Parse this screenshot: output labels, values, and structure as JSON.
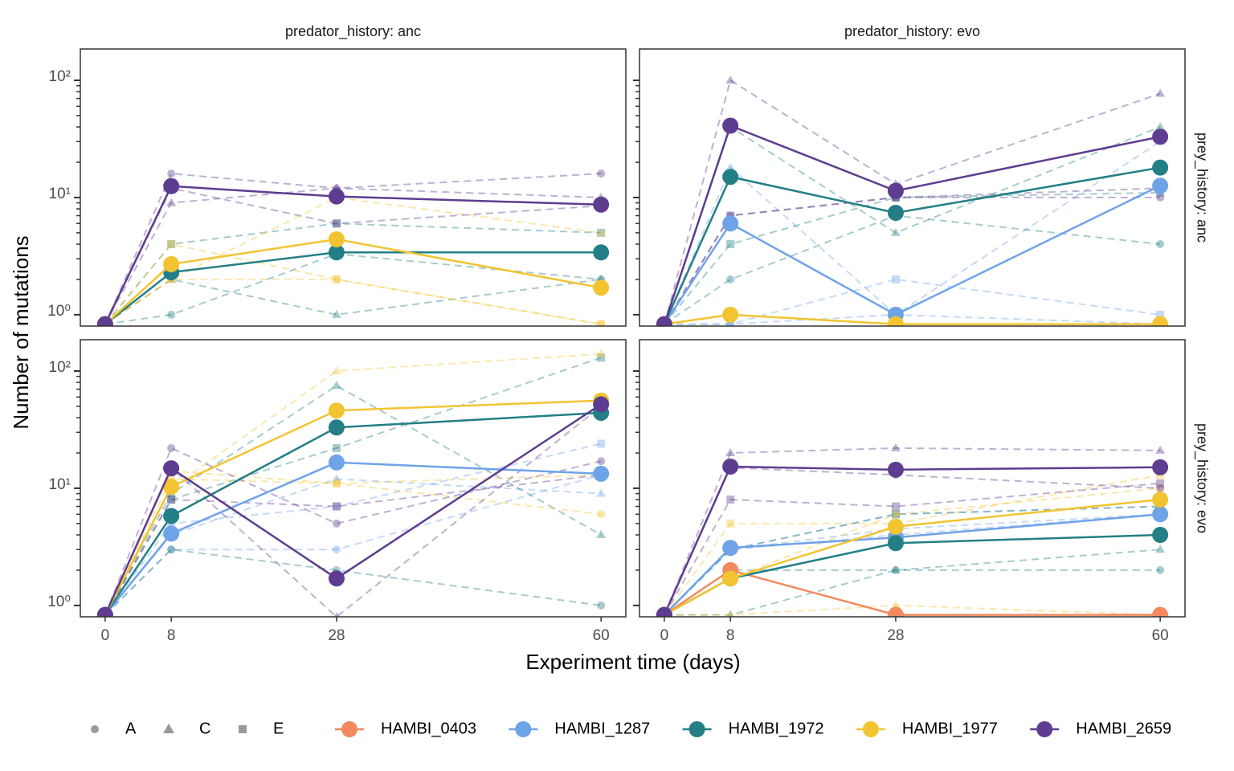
{
  "chart_data": {
    "type": "line",
    "y_label": "Number of mutations",
    "x_label": "Experiment time (days)",
    "log_y": true,
    "ylim": [
      0.8,
      185
    ],
    "yticks": [
      {
        "value": 1,
        "label": "10⁰"
      },
      {
        "value": 10,
        "label": "10¹"
      },
      {
        "value": 100,
        "label": "10²"
      }
    ],
    "yticks_minor": [
      2,
      3,
      4,
      5,
      6,
      7,
      8,
      9,
      20,
      30,
      40,
      50,
      60,
      70,
      80,
      90
    ],
    "xlim": [
      -3,
      63
    ],
    "xticks": [
      0,
      8,
      28,
      60
    ],
    "x": [
      0,
      8,
      28,
      60
    ],
    "col_labels": [
      "predator_history: anc",
      "predator_history: evo"
    ],
    "row_labels": [
      "prey_history: anc",
      "prey_history: evo"
    ],
    "shape_legend": [
      "A",
      "C",
      "E"
    ],
    "strains": [
      {
        "name": "HAMBI_0403",
        "color": "#f4895f"
      },
      {
        "name": "HAMBI_1287",
        "color": "#6fa3e8"
      },
      {
        "name": "HAMBI_1972",
        "color": "#237f85"
      },
      {
        "name": "HAMBI_1977",
        "color": "#f2c431"
      },
      {
        "name": "HAMBI_2659",
        "color": "#5e3c8f"
      }
    ],
    "facets": [
      {
        "col": 0,
        "row": 0,
        "series": [
          {
            "strain": 2,
            "values": [
              0.83,
              2.3,
              3.4,
              3.4
            ],
            "replicates": [
              {
                "replicate": "A",
                "values": [
                  0.83,
                  1,
                  3.3,
                  2
                ]
              },
              {
                "replicate": "C",
                "values": [
                  0.83,
                  2,
                  1,
                  2
                ]
              },
              {
                "replicate": "E",
                "values": [
                  0.83,
                  4,
                  6,
                  5
                ]
              }
            ]
          },
          {
            "strain": 3,
            "values": [
              0.83,
              2.7,
              4.4,
              1.7
            ],
            "replicates": [
              {
                "replicate": "A",
                "values": [
                  0.83,
                  2,
                  2,
                  0.83
                ]
              },
              {
                "replicate": "C",
                "values": [
                  0.83,
                  2,
                  10,
                  5
                ]
              },
              {
                "replicate": "E",
                "values": [
                  0.83,
                  4,
                  2,
                  0.83
                ]
              }
            ]
          },
          {
            "strain": 4,
            "values": [
              0.83,
              12.5,
              10.2,
              8.7
            ],
            "replicates": [
              {
                "replicate": "A",
                "values": [
                  0.83,
                  16,
                  12,
                  16
                ]
              },
              {
                "replicate": "C",
                "values": [
                  0.83,
                  9,
                  12,
                  10
                ]
              },
              {
                "replicate": "E",
                "values": [
                  0.83,
                  12,
                  6,
                  8.5
                ]
              }
            ]
          }
        ]
      },
      {
        "col": 1,
        "row": 0,
        "series": [
          {
            "strain": 1,
            "values": [
              0.83,
              6,
              1,
              12.6
            ],
            "replicates": [
              {
                "replicate": "A",
                "values": [
                  0.83,
                  0.83,
                  1,
                  0.83
                ]
              },
              {
                "replicate": "C",
                "values": [
                  0.83,
                  18,
                  1,
                  30
                ]
              },
              {
                "replicate": "E",
                "values": [
                  0.83,
                  0.83,
                  2,
                  1
                ]
              }
            ]
          },
          {
            "strain": 2,
            "values": [
              0.83,
              15,
              7.4,
              18
            ],
            "replicates": [
              {
                "replicate": "A",
                "values": [
                  0.83,
                  2,
                  7,
                  4
                ]
              },
              {
                "replicate": "C",
                "values": [
                  0.83,
                  40,
                  5,
                  40
                ]
              },
              {
                "replicate": "E",
                "values": [
                  0.83,
                  4,
                  10,
                  11
                ]
              }
            ]
          },
          {
            "strain": 3,
            "values": [
              0.83,
              1,
              0.83,
              0.83
            ],
            "replicates": [
              {
                "replicate": "A",
                "values": [
                  0.83,
                  1,
                  0.83,
                  0.83
                ]
              }
            ]
          },
          {
            "strain": 4,
            "values": [
              0.83,
              41,
              11.4,
              33
            ],
            "replicates": [
              {
                "replicate": "A",
                "values": [
                  0.83,
                  7,
                  10,
                  10
                ]
              },
              {
                "replicate": "C",
                "values": [
                  0.83,
                  100,
                  13,
                  77
                ]
              },
              {
                "replicate": "E",
                "values": [
                  0.83,
                  7,
                  10,
                  12
                ]
              }
            ]
          }
        ]
      },
      {
        "col": 0,
        "row": 1,
        "series": [
          {
            "strain": 1,
            "values": [
              0.83,
              4.1,
              16.6,
              13.3
            ],
            "replicates": [
              {
                "replicate": "A",
                "values": [
                  0.83,
                  3,
                  3,
                  13
                ]
              },
              {
                "replicate": "C",
                "values": [
                  0.83,
                  4,
                  12,
                  9
                ]
              },
              {
                "replicate": "E",
                "values": [
                  0.83,
                  5,
                  7,
                  24
                ]
              }
            ]
          },
          {
            "strain": 2,
            "values": [
              0.83,
              5.8,
              33,
              44
            ],
            "replicates": [
              {
                "replicate": "A",
                "values": [
                  0.83,
                  3,
                  2,
                  1
                ]
              },
              {
                "replicate": "C",
                "values": [
                  0.83,
                  9,
                  75,
                  4
                ]
              },
              {
                "replicate": "E",
                "values": [
                  0.83,
                  8,
                  22,
                  130
                ]
              }
            ]
          },
          {
            "strain": 3,
            "values": [
              0.83,
              10.3,
              46,
              56
            ],
            "replicates": [
              {
                "replicate": "A",
                "values": [
                  0.83,
                  12,
                  11,
                  6
                ]
              },
              {
                "replicate": "C",
                "values": [
                  0.83,
                  10,
                  100,
                  140
                ]
              },
              {
                "replicate": "E",
                "values": [
                  0.83,
                  14,
                  11,
                  13
                ]
              }
            ]
          },
          {
            "strain": 4,
            "values": [
              0.83,
              14.8,
              1.7,
              52
            ],
            "replicates": [
              {
                "replicate": "A",
                "values": [
                  0.83,
                  22,
                  5,
                  17
                ]
              },
              {
                "replicate": "C",
                "values": [
                  0.83,
                  15,
                  0.8,
                  50
                ]
              },
              {
                "replicate": "E",
                "values": [
                  0.83,
                  8,
                  7,
                  13
                ]
              }
            ]
          }
        ]
      },
      {
        "col": 1,
        "row": 1,
        "series": [
          {
            "strain": 0,
            "values": [
              0.83,
              2,
              0.83,
              0.83
            ],
            "replicates": []
          },
          {
            "strain": 1,
            "values": [
              0.83,
              3.1,
              3.8,
              6
            ],
            "replicates": [
              {
                "replicate": "A",
                "values": [
                  0.83,
                  3,
                  4,
                  6
                ]
              },
              {
                "replicate": "C",
                "values": [
                  0.83,
                  3,
                  4.5,
                  6
                ]
              },
              {
                "replicate": "E",
                "values": [
                  0.83,
                  3,
                  6,
                  7
                ]
              }
            ]
          },
          {
            "strain": 2,
            "values": [
              0.83,
              1.7,
              3.4,
              4
            ],
            "replicates": [
              {
                "replicate": "A",
                "values": [
                  0.83,
                  2,
                  2,
                  2
                ]
              },
              {
                "replicate": "C",
                "values": [
                  0.83,
                  0.83,
                  2,
                  3
                ]
              },
              {
                "replicate": "E",
                "values": [
                  0.83,
                  3,
                  6,
                  7
                ]
              }
            ]
          },
          {
            "strain": 3,
            "values": [
              0.83,
              1.7,
              4.7,
              8
            ],
            "replicates": [
              {
                "replicate": "A",
                "values": [
                  0.83,
                  1.7,
                  6,
                  10
                ]
              },
              {
                "replicate": "C",
                "values": [
                  0.83,
                  0.83,
                  1,
                  0.83
                ]
              },
              {
                "replicate": "E",
                "values": [
                  0.83,
                  5,
                  5,
                  13
                ]
              }
            ]
          },
          {
            "strain": 4,
            "values": [
              0.83,
              15.3,
              14.4,
              15.1
            ],
            "replicates": [
              {
                "replicate": "A",
                "values": [
                  0.83,
                  15,
                  13,
                  10
                ]
              },
              {
                "replicate": "C",
                "values": [
                  0.83,
                  20,
                  22,
                  21
                ]
              },
              {
                "replicate": "E",
                "values": [
                  0.83,
                  8,
                  7,
                  11
                ]
              }
            ]
          }
        ]
      }
    ]
  }
}
